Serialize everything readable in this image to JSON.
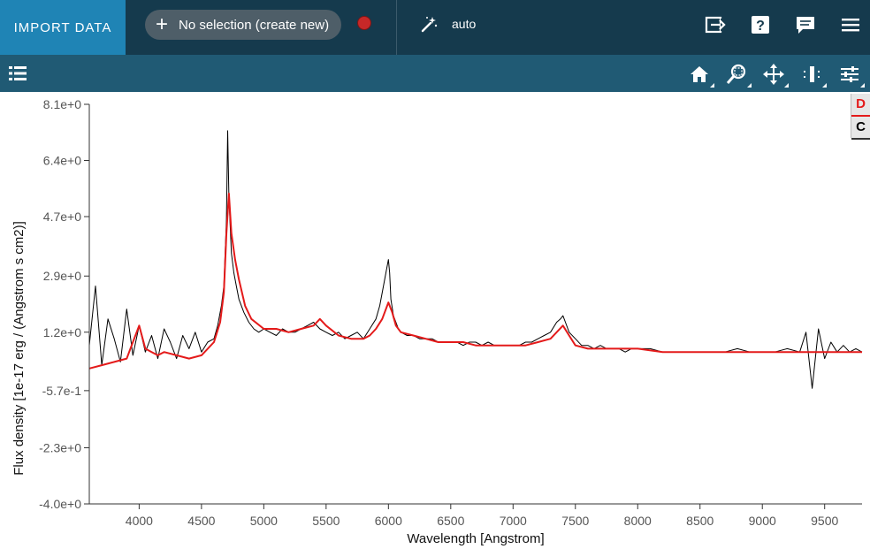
{
  "topbar": {
    "import_label": "IMPORT DATA",
    "subset_label": "No selection (create new)",
    "subset_color": "#c62828",
    "mode_label": "auto",
    "icons": [
      "wand-icon",
      "export-icon",
      "help-icon",
      "chat-icon",
      "menu-icon"
    ]
  },
  "toolbar": {
    "icons": [
      "list-icon",
      "home-icon",
      "zoom-icon",
      "pan-icon",
      "range-select-icon",
      "settings-sliders-icon"
    ]
  },
  "side_tabs": {
    "d": "D",
    "c": "C"
  },
  "colors": {
    "topbar_bg": "#153a4d",
    "import_bg": "#1f84b5",
    "toolbar_bg": "#205a74",
    "spectrum": "#000000",
    "model": "#e41a1a"
  },
  "chart_data": {
    "type": "line",
    "xlabel": "Wavelength [Angstrom]",
    "ylabel": "Flux density [1e-17 erg / (Angstrom s cm2)]",
    "xlim": [
      3600,
      9800
    ],
    "ylim": [
      -4.0,
      8.1
    ],
    "xticks": [
      4000,
      4500,
      5000,
      5500,
      6000,
      6500,
      7000,
      7500,
      8000,
      8500,
      9000,
      9500
    ],
    "xtick_labels": [
      "4000",
      "4500",
      "5000",
      "5500",
      "6000",
      "6500",
      "7000",
      "7500",
      "8000",
      "8500",
      "9000",
      "9500"
    ],
    "yticks": [
      8.1,
      6.4,
      4.7,
      2.9,
      1.2,
      -0.57,
      -2.3,
      -4.0
    ],
    "ytick_labels": [
      "8.1e+0",
      "6.4e+0",
      "4.7e+0",
      "2.9e+0",
      "1.2e+0",
      "-5.7e-1",
      "-2.3e+0",
      "-4.0e+0"
    ],
    "grid": false,
    "series": [
      {
        "color": "#000000",
        "x": [
          3600,
          3650,
          3700,
          3750,
          3800,
          3850,
          3900,
          3950,
          4000,
          4050,
          4100,
          4150,
          4200,
          4250,
          4300,
          4350,
          4400,
          4450,
          4500,
          4550,
          4600,
          4630,
          4660,
          4680,
          4700,
          4710,
          4720,
          4740,
          4760,
          4780,
          4800,
          4840,
          4880,
          4920,
          4960,
          5000,
          5050,
          5100,
          5150,
          5200,
          5250,
          5300,
          5350,
          5400,
          5450,
          5500,
          5550,
          5600,
          5650,
          5700,
          5750,
          5800,
          5850,
          5900,
          5930,
          5960,
          5980,
          6000,
          6010,
          6020,
          6040,
          6060,
          6080,
          6100,
          6150,
          6200,
          6250,
          6300,
          6350,
          6400,
          6450,
          6500,
          6550,
          6600,
          6650,
          6700,
          6750,
          6800,
          6850,
          6900,
          6950,
          7000,
          7050,
          7100,
          7150,
          7200,
          7250,
          7300,
          7350,
          7380,
          7400,
          7420,
          7450,
          7500,
          7550,
          7600,
          7650,
          7700,
          7750,
          7800,
          7850,
          7900,
          7950,
          8000,
          8100,
          8200,
          8300,
          8400,
          8500,
          8600,
          8700,
          8800,
          8900,
          9000,
          9100,
          9200,
          9300,
          9350,
          9400,
          9450,
          9500,
          9550,
          9600,
          9650,
          9700,
          9750,
          9800
        ],
        "y": [
          0.8,
          2.6,
          0.2,
          1.6,
          1.0,
          0.3,
          1.9,
          0.5,
          1.4,
          0.6,
          1.1,
          0.4,
          1.3,
          0.9,
          0.4,
          1.1,
          0.7,
          1.2,
          0.6,
          0.9,
          1.0,
          1.4,
          2.0,
          2.6,
          4.6,
          7.3,
          5.3,
          3.6,
          3.0,
          2.6,
          2.2,
          1.8,
          1.5,
          1.3,
          1.2,
          1.3,
          1.2,
          1.1,
          1.3,
          1.2,
          1.2,
          1.3,
          1.4,
          1.5,
          1.3,
          1.2,
          1.1,
          1.2,
          1.0,
          1.1,
          1.2,
          1.0,
          1.3,
          1.6,
          2.0,
          2.6,
          3.0,
          3.4,
          3.0,
          2.2,
          1.7,
          1.5,
          1.3,
          1.2,
          1.1,
          1.1,
          1.0,
          1.0,
          1.0,
          0.9,
          0.9,
          0.9,
          0.9,
          0.8,
          0.9,
          0.9,
          0.8,
          0.9,
          0.8,
          0.8,
          0.8,
          0.8,
          0.8,
          0.9,
          0.9,
          1.0,
          1.1,
          1.2,
          1.5,
          1.6,
          1.7,
          1.5,
          1.2,
          1.0,
          0.8,
          0.8,
          0.7,
          0.8,
          0.7,
          0.7,
          0.7,
          0.6,
          0.7,
          0.7,
          0.7,
          0.6,
          0.6,
          0.6,
          0.6,
          0.6,
          0.6,
          0.7,
          0.6,
          0.6,
          0.6,
          0.7,
          0.6,
          1.2,
          -0.5,
          1.3,
          0.4,
          0.9,
          0.6,
          0.8,
          0.6,
          0.7,
          0.6
        ]
      },
      {
        "color": "#e41a1a",
        "x": [
          3600,
          3700,
          3800,
          3900,
          3950,
          4000,
          4050,
          4100,
          4150,
          4200,
          4300,
          4400,
          4500,
          4600,
          4650,
          4680,
          4700,
          4720,
          4740,
          4770,
          4800,
          4850,
          4900,
          5000,
          5100,
          5200,
          5300,
          5400,
          5450,
          5500,
          5600,
          5700,
          5800,
          5850,
          5900,
          5950,
          6000,
          6030,
          6060,
          6100,
          6200,
          6300,
          6400,
          6500,
          6600,
          6700,
          6800,
          6900,
          7000,
          7100,
          7200,
          7300,
          7350,
          7400,
          7450,
          7500,
          7600,
          7700,
          7800,
          7900,
          8000,
          8200,
          8400,
          8600,
          8800,
          9000,
          9200,
          9400,
          9600,
          9800
        ],
        "y": [
          0.1,
          0.2,
          0.3,
          0.4,
          0.9,
          1.4,
          0.7,
          0.6,
          0.5,
          0.6,
          0.5,
          0.4,
          0.5,
          0.9,
          1.5,
          2.4,
          4.2,
          5.4,
          4.2,
          3.4,
          2.8,
          2.0,
          1.6,
          1.3,
          1.3,
          1.2,
          1.3,
          1.4,
          1.6,
          1.4,
          1.1,
          1.0,
          1.0,
          1.1,
          1.3,
          1.6,
          2.1,
          1.8,
          1.4,
          1.2,
          1.1,
          1.0,
          0.9,
          0.9,
          0.9,
          0.8,
          0.8,
          0.8,
          0.8,
          0.8,
          0.9,
          1.0,
          1.2,
          1.4,
          1.1,
          0.8,
          0.7,
          0.7,
          0.7,
          0.7,
          0.7,
          0.6,
          0.6,
          0.6,
          0.6,
          0.6,
          0.6,
          0.6,
          0.6,
          0.6
        ]
      }
    ]
  }
}
